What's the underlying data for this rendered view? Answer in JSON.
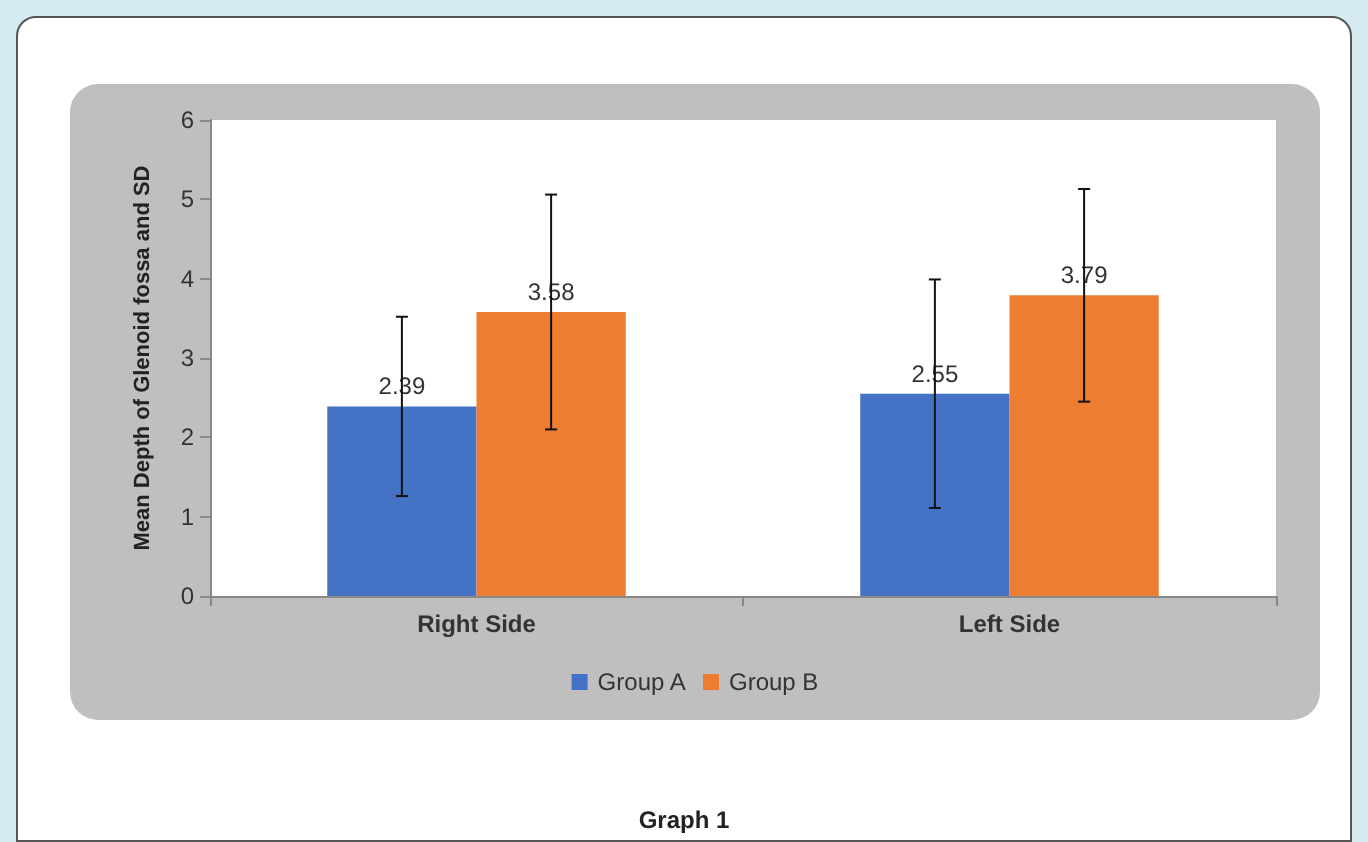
{
  "chart_data": {
    "type": "bar",
    "categories": [
      "Right Side",
      "Left Side"
    ],
    "series": [
      {
        "name": "Group A",
        "color": "#4472c4",
        "values": [
          2.39,
          2.55
        ],
        "errors": [
          1.13,
          1.44
        ]
      },
      {
        "name": "Group B",
        "color": "#ed7d31",
        "values": [
          3.58,
          3.79
        ],
        "errors": [
          1.48,
          1.34
        ]
      }
    ],
    "ylabel": "Mean Depth of Glenoid fossa and SD",
    "ylim": [
      0,
      6
    ],
    "yticks": [
      0,
      1,
      2,
      3,
      4,
      5,
      6
    ],
    "data_labels": true,
    "grid": false,
    "legend": "bottom",
    "annotations": [
      "Graph 1"
    ]
  }
}
